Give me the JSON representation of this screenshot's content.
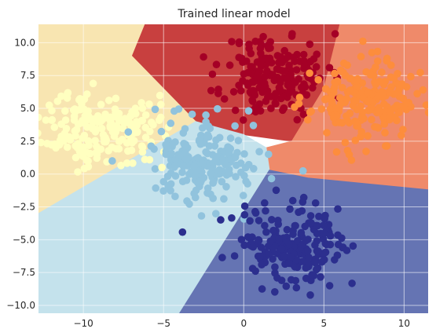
{
  "chart_data": {
    "type": "scatter",
    "title": "Trained linear model",
    "xlabel": "",
    "ylabel": "",
    "xlim": [
      -12.8,
      11.5
    ],
    "ylim": [
      -10.6,
      11.4
    ],
    "x_ticks": [
      -10,
      -5,
      0,
      5,
      10
    ],
    "y_ticks": [
      -10.0,
      -7.5,
      -5.0,
      -2.5,
      0.0,
      2.5,
      5.0,
      7.5,
      10.0
    ],
    "x_tick_labels": [
      "−10",
      "−5",
      "0",
      "5",
      "10"
    ],
    "y_tick_labels": [
      "−10.0",
      "−7.5",
      "−5.0",
      "−2.5",
      "0.0",
      "2.5",
      "5.0",
      "7.5",
      "10.0"
    ],
    "grid": true,
    "legend": "none",
    "decision_regions": [
      {
        "class": 0,
        "color": "#c8403f",
        "polygon": [
          [
            -6.2,
            11.4
          ],
          [
            -7.0,
            9.0
          ],
          [
            -3.0,
            4.0
          ],
          [
            0.0,
            3.0
          ],
          [
            3.0,
            2.5
          ],
          [
            5.0,
            6.5
          ],
          [
            6.0,
            11.4
          ]
        ]
      },
      {
        "class": 1,
        "color": "#ef8a6a",
        "polygon": [
          [
            6.0,
            11.4
          ],
          [
            5.0,
            6.5
          ],
          [
            3.0,
            2.5
          ],
          [
            1.4,
            2.0
          ],
          [
            1.6,
            0.3
          ],
          [
            4.0,
            -0.3
          ],
          [
            11.5,
            -1.2
          ],
          [
            11.5,
            11.4
          ]
        ]
      },
      {
        "class": 2,
        "color": "#f8e5b1",
        "polygon": [
          [
            -12.8,
            11.4
          ],
          [
            -6.2,
            11.4
          ],
          [
            -7.0,
            9.0
          ],
          [
            -3.0,
            4.0
          ],
          [
            -12.8,
            -3.0
          ]
        ]
      },
      {
        "class": 3,
        "color": "#c4e2ec",
        "polygon": [
          [
            -12.8,
            -3.0
          ],
          [
            -3.0,
            4.0
          ],
          [
            0.0,
            3.0
          ],
          [
            1.4,
            2.0
          ],
          [
            1.6,
            0.3
          ],
          [
            -4.0,
            -10.6
          ],
          [
            -12.8,
            -10.6
          ]
        ]
      },
      {
        "class": 4,
        "color": "#6574b3",
        "polygon": [
          [
            1.6,
            0.3
          ],
          [
            4.0,
            -0.3
          ],
          [
            11.5,
            -1.2
          ],
          [
            11.5,
            -10.6
          ],
          [
            -4.0,
            -10.6
          ]
        ]
      }
    ],
    "series": [
      {
        "class": 0,
        "color": "#a50026",
        "center": [
          2.0,
          7.5
        ],
        "spread": [
          1.6,
          1.6
        ],
        "count": 200,
        "seed": 11
      },
      {
        "class": 1,
        "color": "#fd8d3c",
        "center": [
          7.5,
          5.5
        ],
        "spread": [
          1.6,
          1.5
        ],
        "count": 200,
        "seed": 23
      },
      {
        "class": 2,
        "color": "#ffffc0",
        "center": [
          -9.0,
          3.5
        ],
        "spread": [
          1.8,
          1.4
        ],
        "count": 200,
        "seed": 37
      },
      {
        "class": 3,
        "color": "#91c3dd",
        "center": [
          -2.5,
          1.0
        ],
        "spread": [
          1.7,
          1.6
        ],
        "count": 200,
        "seed": 49
      },
      {
        "class": 4,
        "color": "#2c2f8e",
        "center": [
          3.0,
          -5.2
        ],
        "spread": [
          1.7,
          1.6
        ],
        "count": 200,
        "seed": 61
      }
    ],
    "misclassified_points": [
      {
        "x": 0.6,
        "y": 3.7,
        "color": "#91c3dd"
      },
      {
        "x": -7.2,
        "y": 3.2,
        "color": "#91c3dd"
      },
      {
        "x": -8.2,
        "y": 1.0,
        "color": "#91c3dd"
      },
      {
        "x": -5.1,
        "y": 0.5,
        "color": "#ffffc0"
      }
    ],
    "colors": {
      "grid": "#ffffff",
      "text": "#262626"
    }
  }
}
